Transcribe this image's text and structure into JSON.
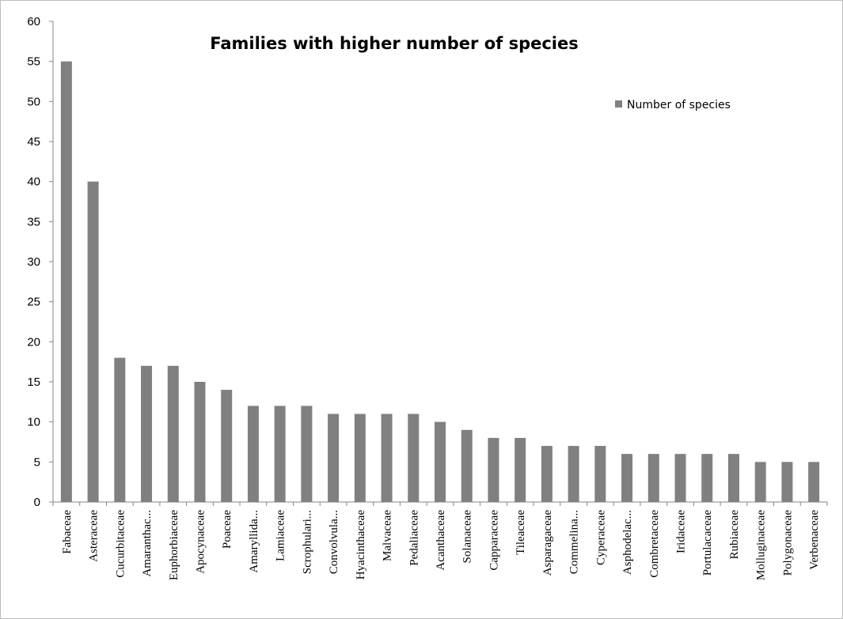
{
  "chart_data": {
    "type": "bar",
    "title": "Families with higher number of species",
    "xlabel": "",
    "ylabel": "",
    "ylim": [
      0,
      60
    ],
    "yticks": [
      0,
      5,
      10,
      15,
      20,
      25,
      30,
      35,
      40,
      45,
      50,
      55,
      60
    ],
    "grid": false,
    "legend_position": "top-right",
    "bar_color": "#808080",
    "categories": [
      "Fabaceae",
      "Asteraceae",
      "Cucurbitaceae",
      "Amaranthac...",
      "Euphorbiaceae",
      "Apocynaceae",
      "Poaceae",
      "Amaryllida...",
      "Lamiaceae",
      "Scrophulari...",
      "Convolvula...",
      "Hyacinthaceae",
      "Malvaceae",
      "Pedaliaceae",
      "Acanthaceae",
      "Solanaceae",
      "Capparaceae",
      "Tileaceae",
      "Asparagaceae",
      "Commelina...",
      "Cyperaceae",
      "Asphodelac...",
      "Combretaceae",
      "Iridaceae",
      "Portulacaceae",
      "Rubiaceae",
      "Molluginaceae",
      "Polygonaceae",
      "Verbenaceae"
    ],
    "series": [
      {
        "name": "Number of species",
        "values": [
          55,
          40,
          18,
          17,
          17,
          15,
          14,
          12,
          12,
          12,
          11,
          11,
          11,
          11,
          10,
          9,
          8,
          8,
          7,
          7,
          7,
          6,
          6,
          6,
          6,
          6,
          5,
          5,
          5
        ]
      }
    ]
  }
}
